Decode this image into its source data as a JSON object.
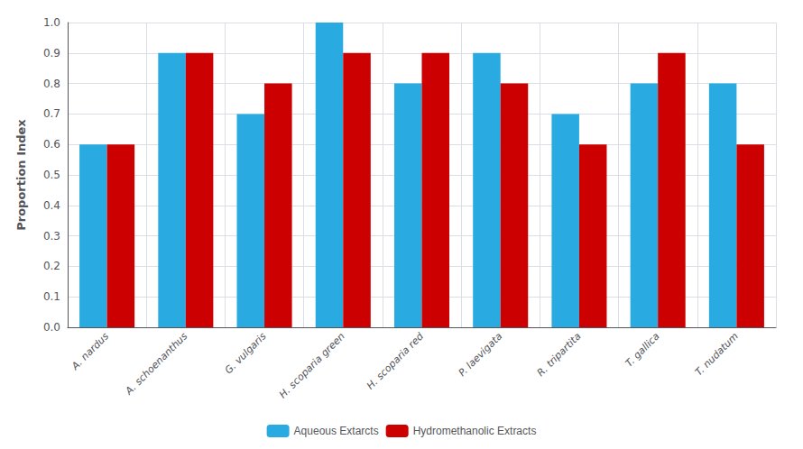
{
  "chart_data": {
    "type": "bar",
    "categories": [
      "A. nardus",
      "A. schoenanthus",
      "G. vulgaris",
      "H. scoparia green",
      "H. scoparia red",
      "P. laevigata",
      "R. tripartita",
      "T. gallica",
      "T. nudatum"
    ],
    "series": [
      {
        "name": "Aqueous Extarcts",
        "color": "#29ABE2",
        "values": [
          0.6,
          0.9,
          0.7,
          1.0,
          0.8,
          0.9,
          0.7,
          0.8,
          0.8
        ]
      },
      {
        "name": "Hydromethanolic Extracts",
        "color": "#CC0000",
        "values": [
          0.6,
          0.9,
          0.8,
          0.9,
          0.9,
          0.8,
          0.6,
          0.9,
          0.6
        ]
      }
    ],
    "ylabel": "Proportion Index",
    "ylim": [
      0.0,
      1.0
    ],
    "yticks": [
      {
        "value": 0,
        "label": "0.0"
      },
      0.1,
      0.2,
      0.3,
      0.4,
      0.5,
      0.6,
      0.7,
      0.8,
      0.9,
      {
        "value": 1,
        "label": "1.0"
      }
    ],
    "grid": true,
    "legend": "bottom"
  }
}
